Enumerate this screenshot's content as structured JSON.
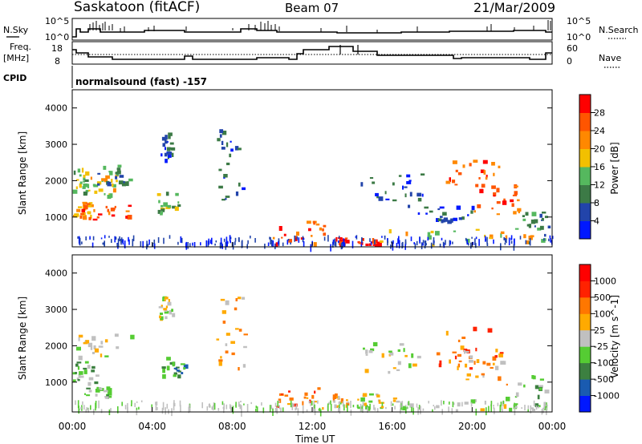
{
  "header": {
    "station": "Saskatoon (fitACF)",
    "beam": "Beam 07",
    "date": "21/Mar/2009"
  },
  "summary": {
    "nsky_label": "N.Sky",
    "nsky_ticks": [
      "10^5",
      "10^0"
    ],
    "nsearch_label": "N.Search",
    "nsearch_ticks": [
      "10^5",
      "10^0"
    ],
    "freq_label": "Freq.",
    "freq_unit": "[MHz]",
    "freq_ticks": [
      "18",
      "8"
    ],
    "nave_label": "Nave",
    "nave_ticks": [
      "60",
      "0"
    ],
    "cpid_label": "CPID",
    "cpid_value": "normalsound (fast) -157"
  },
  "chart_data": [
    {
      "type": "heatmap",
      "title": "",
      "xlabel": "Time UT",
      "ylabel": "Slant Range [km]",
      "x_ticks": [
        "00:00",
        "04:00",
        "08:00",
        "12:00",
        "16:00",
        "20:00",
        "00:00"
      ],
      "xlim_hours": [
        0,
        24
      ],
      "y_ticks": [
        "1000",
        "2000",
        "3000",
        "4000"
      ],
      "ylim": [
        180,
        4500
      ],
      "colorbar": {
        "label": "Power [dB]",
        "ticks": [
          "4",
          "8",
          "12",
          "16",
          "20",
          "24",
          "28"
        ],
        "colors": [
          "#0018ff",
          "#2244aa",
          "#3c7a46",
          "#55b85e",
          "#f2c000",
          "#ff8800",
          "#ff5500",
          "#ff0000"
        ]
      },
      "regions": [
        {
          "x": [
            0,
            0.9
          ],
          "y": [
            1700,
            2450
          ],
          "level": 3
        },
        {
          "x": [
            0,
            0.9
          ],
          "y": [
            1000,
            1450
          ],
          "level": 5
        },
        {
          "x": [
            0.9,
            2.2
          ],
          "y": [
            1600,
            2200
          ],
          "level": 4
        },
        {
          "x": [
            0.3,
            2.8
          ],
          "y": [
            950,
            1400
          ],
          "level": 6
        },
        {
          "x": [
            1.2,
            2.9
          ],
          "y": [
            1900,
            2450
          ],
          "level": 2
        },
        {
          "x": [
            4.2,
            5.6
          ],
          "y": [
            1100,
            1700
          ],
          "level": 3
        },
        {
          "x": [
            4.4,
            5.0
          ],
          "y": [
            2600,
            3400
          ],
          "level": 1
        },
        {
          "x": [
            7.2,
            8.6
          ],
          "y": [
            1500,
            3500
          ],
          "level": 1
        },
        {
          "x": [
            10.0,
            12.8
          ],
          "y": [
            200,
            900
          ],
          "level": 6
        },
        {
          "x": [
            13.0,
            13.7
          ],
          "y": [
            200,
            450
          ],
          "level": 7
        },
        {
          "x": [
            14.2,
            15.3
          ],
          "y": [
            200,
            450
          ],
          "level": 7
        },
        {
          "x": [
            14.2,
            17.5
          ],
          "y": [
            1300,
            2200
          ],
          "level": 1
        },
        {
          "x": [
            15.3,
            23.2
          ],
          "y": [
            200,
            700
          ],
          "level": 4
        },
        {
          "x": [
            18.5,
            21.5
          ],
          "y": [
            1600,
            2600
          ],
          "level": 6
        },
        {
          "x": [
            20.0,
            22.3
          ],
          "y": [
            1100,
            1900
          ],
          "level": 6
        },
        {
          "x": [
            17.0,
            20.0
          ],
          "y": [
            800,
            1400
          ],
          "level": 1
        },
        {
          "x": [
            22.5,
            23.8
          ],
          "y": [
            300,
            1200
          ],
          "level": 2
        }
      ]
    },
    {
      "type": "heatmap",
      "title": "",
      "xlabel": "Time UT",
      "ylabel": "Slant Range [km]",
      "x_ticks": [
        "00:00",
        "04:00",
        "08:00",
        "12:00",
        "16:00",
        "20:00",
        "00:00"
      ],
      "xlim_hours": [
        0,
        24
      ],
      "y_ticks": [
        "1000",
        "2000",
        "3000",
        "4000"
      ],
      "ylim": [
        180,
        4500
      ],
      "colorbar": {
        "label": "Velocity [m s^-1]",
        "ticks": [
          "1000",
          "500",
          "100",
          "25",
          "-25",
          "-100",
          "-500",
          "-1000"
        ],
        "colors": [
          "#0018ff",
          "#1a5bb0",
          "#3c8040",
          "#55cc33",
          "#c0c0c0",
          "#ffaa00",
          "#ff7700",
          "#ff2200",
          "#ff0000"
        ]
      },
      "regions": [
        {
          "x": [
            0,
            2.9
          ],
          "y": [
            1700,
            2450
          ],
          "level": 4
        },
        {
          "x": [
            0,
            1.2
          ],
          "y": [
            1000,
            1600
          ],
          "level": 3
        },
        {
          "x": [
            0.6,
            1.8
          ],
          "y": [
            600,
            900
          ],
          "level": 3
        },
        {
          "x": [
            4.4,
            5.6
          ],
          "y": [
            1150,
            1700
          ],
          "level": 2
        },
        {
          "x": [
            4.3,
            5.0
          ],
          "y": [
            2800,
            3400
          ],
          "level": 4
        },
        {
          "x": [
            7.2,
            8.6
          ],
          "y": [
            1400,
            3500
          ],
          "level": 5
        },
        {
          "x": [
            10.1,
            12.8
          ],
          "y": [
            200,
            900
          ],
          "level": 6
        },
        {
          "x": [
            13.0,
            13.7
          ],
          "y": [
            200,
            700
          ],
          "level": 5
        },
        {
          "x": [
            14.2,
            15.5
          ],
          "y": [
            200,
            700
          ],
          "level": 4
        },
        {
          "x": [
            14.5,
            17.5
          ],
          "y": [
            1300,
            2200
          ],
          "level": 4
        },
        {
          "x": [
            15.5,
            22.8
          ],
          "y": [
            200,
            600
          ],
          "level": 4
        },
        {
          "x": [
            18.2,
            21.6
          ],
          "y": [
            1400,
            2600
          ],
          "level": 6
        },
        {
          "x": [
            19.2,
            21.8
          ],
          "y": [
            900,
            1900
          ],
          "level": 5
        },
        {
          "x": [
            22.0,
            23.8
          ],
          "y": [
            200,
            1200
          ],
          "level": 3
        }
      ]
    }
  ]
}
